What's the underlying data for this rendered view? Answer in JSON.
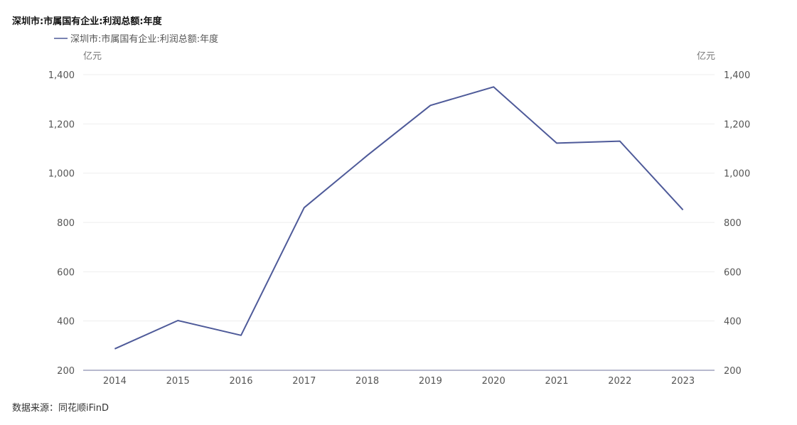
{
  "page": {
    "title": "深圳市:市属国有企业:利润总额:年度",
    "source": "数据来源：同花顺iFinD"
  },
  "chart_data": {
    "type": "line",
    "title": "深圳市:市属国有企业:利润总额:年度",
    "x": [
      "2014",
      "2015",
      "2016",
      "2017",
      "2018",
      "2019",
      "2020",
      "2021",
      "2022",
      "2023"
    ],
    "series": [
      {
        "name": "深圳市:市属国有企业:利润总额:年度",
        "color": "#4e5a99",
        "values": [
          287,
          402,
          342,
          860,
          1072,
          1275,
          1350,
          1122,
          1130,
          851
        ]
      }
    ],
    "y_unit_left": "亿元",
    "y_unit_right": "亿元",
    "ylim": [
      200,
      1400
    ],
    "yticks": [
      200,
      400,
      600,
      800,
      1000,
      1200,
      1400
    ],
    "ytick_labels": [
      "200",
      "400",
      "600",
      "800",
      "1,000",
      "1,200",
      "1,400"
    ],
    "grid": true,
    "legend_position": "top-left",
    "dual_axis_labels": true
  }
}
